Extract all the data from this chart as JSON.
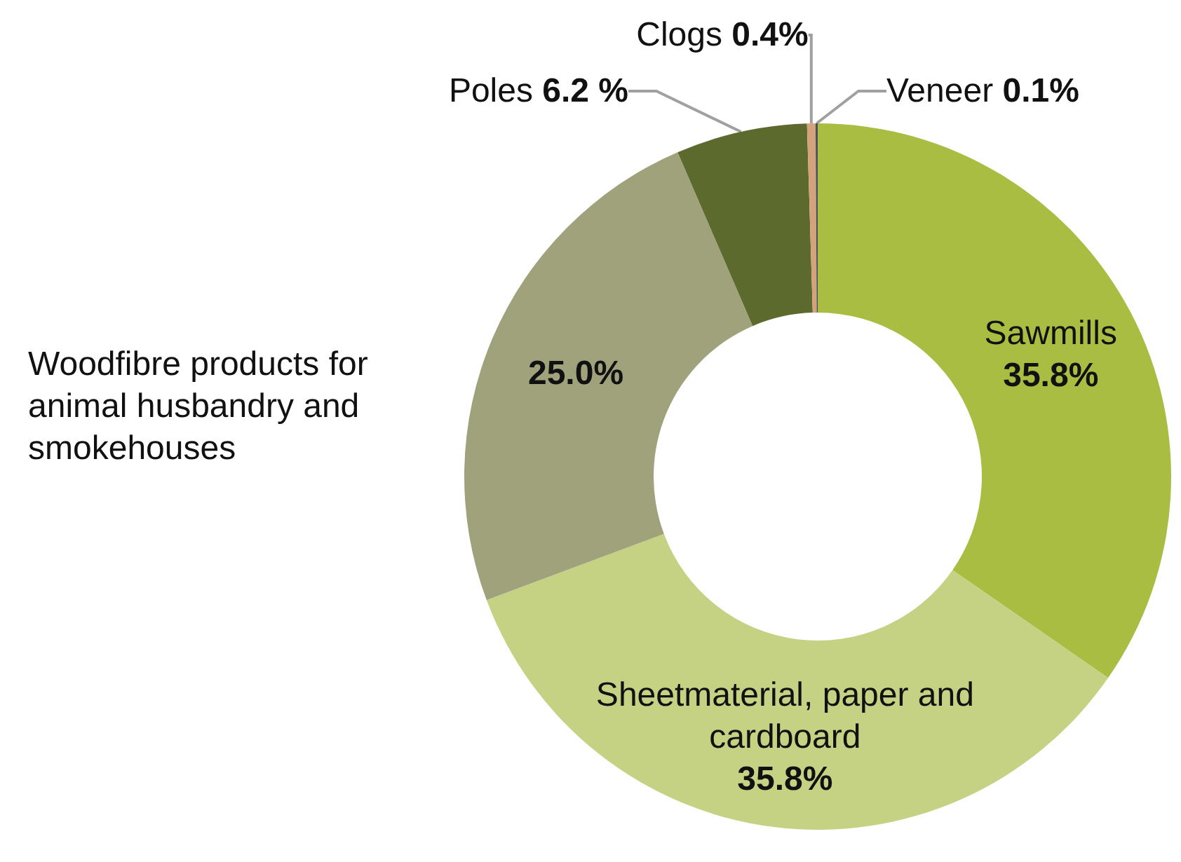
{
  "chart_data": {
    "type": "donut",
    "categories": [
      "Sawmills",
      "Sheetmaterial, paper and cardboard",
      "Woodfibre products for animal husbandry and smokehouses",
      "Poles",
      "Clogs",
      "Veneer"
    ],
    "values": [
      35.8,
      35.8,
      25.0,
      6.2,
      0.4,
      0.1
    ],
    "value_labels": [
      "35.8%",
      "35.8%",
      "25.0%",
      "6.2 %",
      "0.4%",
      "0.1%"
    ],
    "colors": [
      "#a9bd42",
      "#c5d183",
      "#a0a27b",
      "#5c6a2e",
      "#d4a37c",
      "#4a4f5a"
    ],
    "legend": false
  }
}
